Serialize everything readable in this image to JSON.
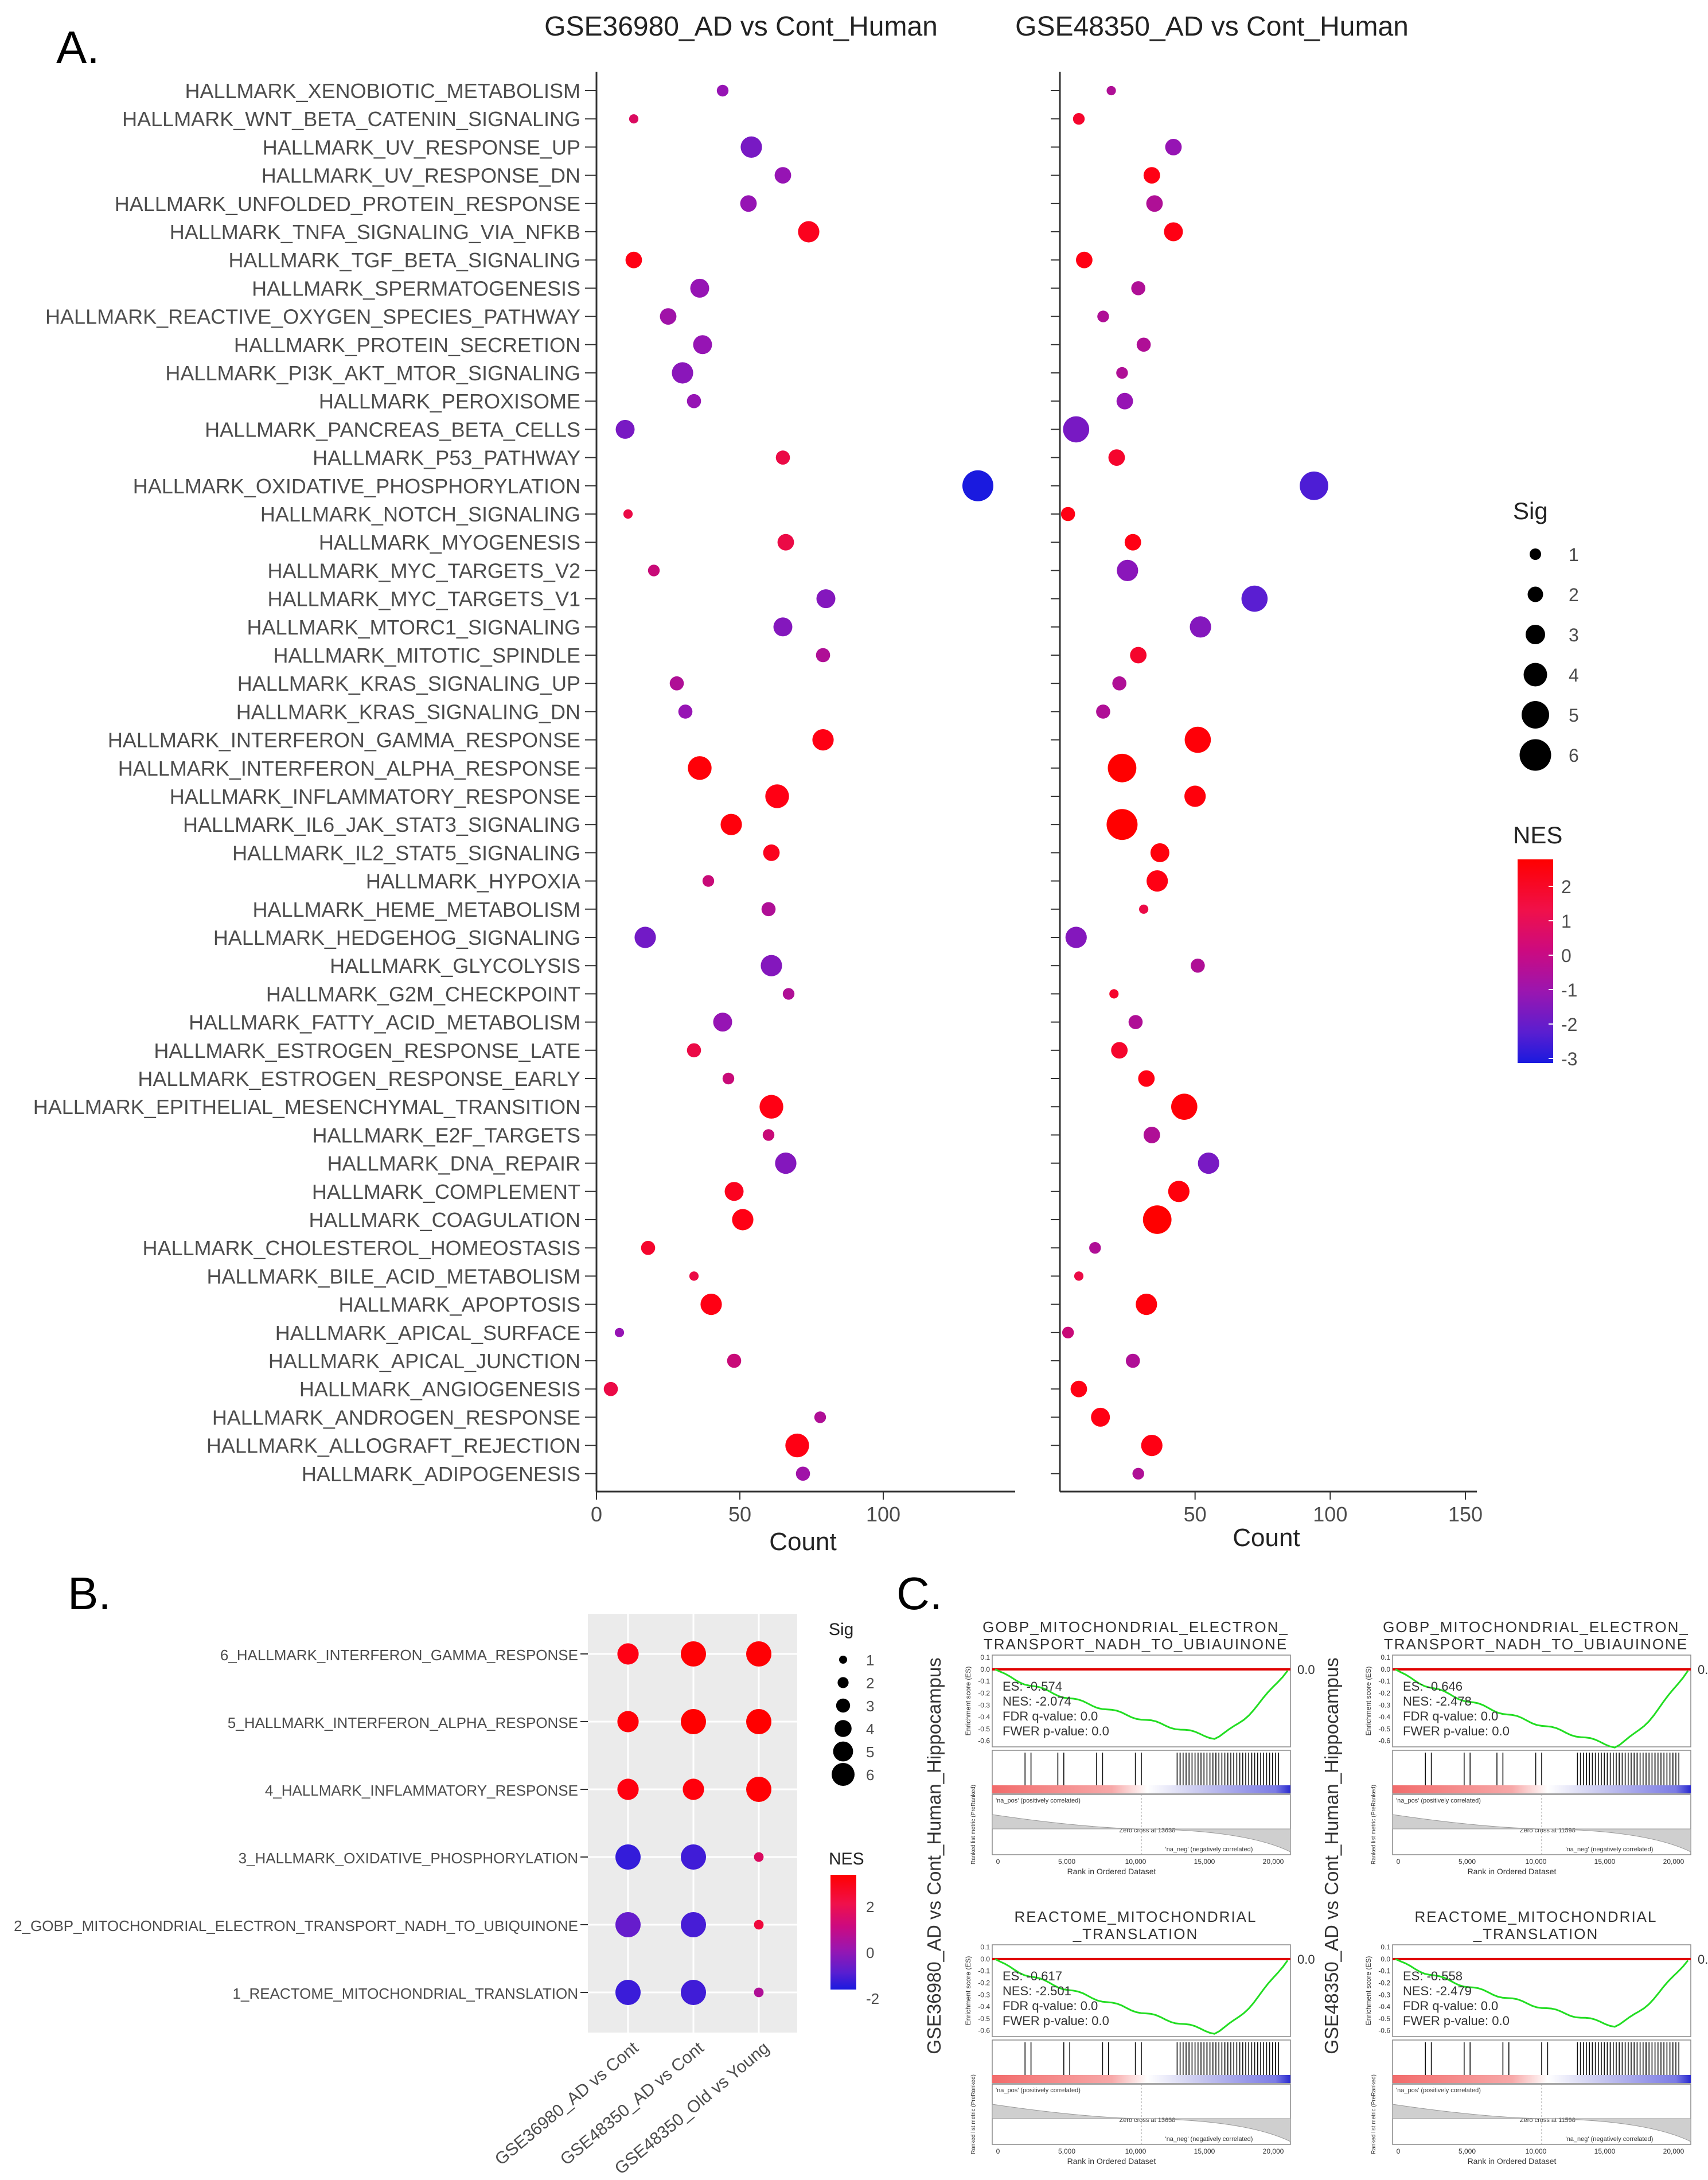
{
  "panel_labels": {
    "a": "A.",
    "b": "B.",
    "c": "C."
  },
  "chart_data": [
    {
      "type": "scatter",
      "panel": "A",
      "titles": [
        "GSE36980_AD vs Cont_Human",
        "GSE48350_AD vs Cont_Human"
      ],
      "xlabel": "Count",
      "xticks_left": [
        0,
        50,
        100
      ],
      "xticks_right": [
        50,
        100,
        150
      ],
      "xlim_left": [
        0,
        140
      ],
      "xlim_right": [
        0,
        150
      ],
      "categories": [
        "HALLMARK_XENOBIOTIC_METABOLISM",
        "HALLMARK_WNT_BETA_CATENIN_SIGNALING",
        "HALLMARK_UV_RESPONSE_UP",
        "HALLMARK_UV_RESPONSE_DN",
        "HALLMARK_UNFOLDED_PROTEIN_RESPONSE",
        "HALLMARK_TNFA_SIGNALING_VIA_NFKB",
        "HALLMARK_TGF_BETA_SIGNALING",
        "HALLMARK_SPERMATOGENESIS",
        "HALLMARK_REACTIVE_OXYGEN_SPECIES_PATHWAY",
        "HALLMARK_PROTEIN_SECRETION",
        "HALLMARK_PI3K_AKT_MTOR_SIGNALING",
        "HALLMARK_PEROXISOME",
        "HALLMARK_PANCREAS_BETA_CELLS",
        "HALLMARK_P53_PATHWAY",
        "HALLMARK_OXIDATIVE_PHOSPHORYLATION",
        "HALLMARK_NOTCH_SIGNALING",
        "HALLMARK_MYOGENESIS",
        "HALLMARK_MYC_TARGETS_V2",
        "HALLMARK_MYC_TARGETS_V1",
        "HALLMARK_MTORC1_SIGNALING",
        "HALLMARK_MITOTIC_SPINDLE",
        "HALLMARK_KRAS_SIGNALING_UP",
        "HALLMARK_KRAS_SIGNALING_DN",
        "HALLMARK_INTERFERON_GAMMA_RESPONSE",
        "HALLMARK_INTERFERON_ALPHA_RESPONSE",
        "HALLMARK_INFLAMMATORY_RESPONSE",
        "HALLMARK_IL6_JAK_STAT3_SIGNALING",
        "HALLMARK_IL2_STAT5_SIGNALING",
        "HALLMARK_HYPOXIA",
        "HALLMARK_HEME_METABOLISM",
        "HALLMARK_HEDGEHOG_SIGNALING",
        "HALLMARK_GLYCOLYSIS",
        "HALLMARK_G2M_CHECKPOINT",
        "HALLMARK_FATTY_ACID_METABOLISM",
        "HALLMARK_ESTROGEN_RESPONSE_LATE",
        "HALLMARK_ESTROGEN_RESPONSE_EARLY",
        "HALLMARK_EPITHELIAL_MESENCHYMAL_TRANSITION",
        "HALLMARK_E2F_TARGETS",
        "HALLMARK_DNA_REPAIR",
        "HALLMARK_COMPLEMENT",
        "HALLMARK_COAGULATION",
        "HALLMARK_CHOLESTEROL_HOMEOSTASIS",
        "HALLMARK_BILE_ACID_METABOLISM",
        "HALLMARK_APOPTOSIS",
        "HALLMARK_APICAL_SURFACE",
        "HALLMARK_APICAL_JUNCTION",
        "HALLMARK_ANGIOGENESIS",
        "HALLMARK_ANDROGEN_RESPONSE",
        "HALLMARK_ALLOGRAFT_REJECTION",
        "HALLMARK_ADIPOGENESIS"
      ],
      "series": [
        {
          "count": [
            44,
            13,
            54,
            65,
            53,
            74,
            13,
            36,
            25,
            37,
            30,
            34,
            10,
            65,
            133,
            11,
            66,
            20,
            80,
            65,
            79,
            28,
            31,
            79,
            36,
            63,
            47,
            61,
            39,
            60,
            17,
            61,
            67,
            44,
            34,
            46,
            61,
            60,
            66,
            48,
            51,
            18,
            34,
            40,
            8,
            48,
            5,
            78,
            70,
            72
          ],
          "nes": [
            -1,
            0.5,
            -1.5,
            -1,
            -1,
            1.8,
            2,
            -1,
            -0.8,
            -1,
            -1.2,
            -1,
            -1.5,
            1,
            -3,
            1,
            1,
            0,
            -1.3,
            -1.3,
            -0.5,
            -0.5,
            -1,
            2,
            2.3,
            2,
            2.2,
            1.8,
            0,
            -0.5,
            -1.6,
            -1.3,
            -0.5,
            -1,
            1,
            0,
            2,
            0,
            -1.3,
            1.8,
            2,
            1.5,
            1,
            2,
            -1,
            0,
            1,
            -0.5,
            2,
            -0.8
          ],
          "sig": [
            1,
            0.5,
            3,
            2,
            2,
            3,
            2,
            2.5,
            2,
            2.5,
            3,
            1.5,
            2.5,
            1.5,
            5,
            0.5,
            2,
            1,
            2.5,
            2.5,
            1.5,
            1.5,
            1.5,
            3,
            3.5,
            3.5,
            3,
            2,
            1,
            1.5,
            3,
            3,
            1,
            2.5,
            1.5,
            1,
            3.5,
            1,
            3,
            2.5,
            3,
            1.5,
            0.5,
            3,
            0.5,
            1.5,
            1.5,
            1,
            3.5,
            1.5
          ]
        },
        {
          "count": [
            19,
            7,
            42,
            34,
            35,
            42,
            9,
            29,
            16,
            31,
            23,
            24,
            6,
            21,
            94,
            3,
            27,
            25,
            72,
            52,
            29,
            22,
            16,
            51,
            23,
            50,
            23,
            37,
            36,
            31,
            6,
            51,
            20,
            28,
            22,
            32,
            46,
            34,
            55,
            44,
            36,
            13,
            7,
            32,
            3,
            27,
            7,
            15,
            34,
            29
          ],
          "nes": [
            -0.5,
            1.5,
            -1,
            2,
            -0.5,
            2,
            2,
            -0.5,
            -0.5,
            -0.5,
            -0.5,
            -1,
            -1.5,
            1.5,
            -2.2,
            2,
            2,
            -1.2,
            -2,
            -1.3,
            1.5,
            -0.5,
            -0.5,
            2.3,
            2.5,
            2.2,
            2.5,
            2.2,
            2,
            1,
            -1.3,
            -0.5,
            1.5,
            -0.5,
            1.5,
            2,
            2.3,
            -0.5,
            -1.5,
            2.2,
            2.5,
            -0.5,
            1,
            2.2,
            0,
            -0.5,
            2,
            2,
            2,
            -0.5
          ],
          "sig": [
            0.5,
            1,
            2,
            2,
            2,
            2.5,
            2,
            1.5,
            1,
            1.5,
            1,
            2,
            4,
            2,
            4.5,
            1.5,
            2,
            3,
            4,
            3,
            2,
            1.5,
            1.5,
            4,
            4.5,
            3,
            5,
            2.5,
            3,
            0.5,
            3,
            1.5,
            0.5,
            1.5,
            2,
            2,
            4,
            2,
            3,
            3,
            4.5,
            1,
            0.5,
            3,
            1,
            1.5,
            2,
            2.5,
            3,
            1
          ]
        }
      ],
      "size_legend": {
        "title": "Sig",
        "values": [
          "1",
          "2",
          "3",
          "4",
          "5",
          "6"
        ]
      },
      "color_legend": {
        "title": "NES",
        "ticks": [
          "2",
          "1",
          "0",
          "-1",
          "-2",
          "-3"
        ],
        "colors": [
          "#ff0000",
          "#1a1adf"
        ]
      }
    },
    {
      "type": "scatter",
      "panel": "B",
      "categories": [
        "6_HALLMARK_INTERFERON_GAMMA_RESPONSE",
        "5_HALLMARK_INTERFERON_ALPHA_RESPONSE",
        "4_HALLMARK_INFLAMMATORY_RESPONSE",
        "3_HALLMARK_OXIDATIVE_PHOSPHORYLATION",
        "2_GOBP_MITOCHONDRIAL_ELECTRON_TRANSPORT_NADH_TO_UBIQUINONE",
        "1_REACTOME_MITOCHONDRIAL_TRANSLATION"
      ],
      "x": [
        "GSE36980_AD vs Cont",
        "GSE48350_AD vs Cont",
        "GSE48350_Old vs Young"
      ],
      "series": [
        {
          "name": "GSE36980_AD vs Cont",
          "nes": [
            2,
            2.3,
            2.1,
            -2.6,
            -1.8,
            -2.5
          ],
          "sig": [
            4,
            4,
            4,
            5,
            5,
            5
          ]
        },
        {
          "name": "GSE48350_AD vs Cont",
          "nes": [
            2.4,
            2.5,
            2.2,
            -2.4,
            -2.3,
            -2.4
          ],
          "sig": [
            5,
            5,
            4,
            5,
            5,
            5
          ]
        },
        {
          "name": "GSE48350_Old vs Young",
          "nes": [
            2.4,
            2.5,
            2.4,
            0.5,
            1.2,
            -0.5
          ],
          "sig": [
            5,
            5,
            5,
            1,
            1,
            1
          ]
        }
      ],
      "size_legend": {
        "title": "Sig",
        "values": [
          "1",
          "2",
          "3",
          "4",
          "5",
          "6"
        ]
      },
      "color_legend": {
        "title": "NES",
        "ticks": [
          "2",
          "0",
          "-2"
        ]
      }
    },
    {
      "type": "line",
      "panel": "C",
      "row_labels": [
        "GSE36980_AD vs Cont_Human_Hippocampus",
        "GSE48350_AD vs Cont_Human_Hippocampus"
      ],
      "plots": [
        {
          "title1": "GOBP_MITOCHONDRIAL_ELECTRON_",
          "title2": "TRANSPORT_NADH_TO_UBIAUINONE",
          "es": "ES: -0.574",
          "nes": "NES: -2.074",
          "fdr": "FDR q-value: 0.0",
          "fwer": "FWER p-value: 0.0",
          "zero": "Zero cross at 13638",
          "min_es": -0.574
        },
        {
          "title1": "GOBP_MITOCHONDRIAL_ELECTRON_",
          "title2": "TRANSPORT_NADH_TO_UBIAUINONE",
          "es": "ES: -0.646",
          "nes": "NES: -2.478",
          "fdr": "FDR q-value: 0.0",
          "fwer": "FWER p-value: 0.0",
          "zero": "Zero cross at 11598",
          "min_es": -0.646
        },
        {
          "title1": "REACTOME_MITOCHONDRIAL",
          "title2": "_TRANSLATION",
          "es": "ES: -0.617",
          "nes": "NES: -2.501",
          "fdr": "FDR q-value: 0.0",
          "fwer": "FWER p-value: 0.0",
          "zero": "Zero cross at 13638",
          "min_es": -0.617
        },
        {
          "title1": "REACTOME_MITOCHONDRIAL",
          "title2": "_TRANSLATION",
          "es": "ES: -0.558",
          "nes": "NES: -2.479",
          "fdr": "FDR q-value: 0.0",
          "fwer": "FWER p-value: 0.0",
          "zero": "Zero cross at 11598",
          "min_es": -0.558
        }
      ],
      "es_axis_label": "Enrichment score (ES)",
      "metric_axis_label": "Ranked list metric (PreRanked)",
      "xlabel": "Rank in Ordered Dataset",
      "xticks": [
        "0",
        "5,000",
        "10,000",
        "15,000",
        "20,000"
      ],
      "es_ticks": [
        "0.1",
        "0.0",
        "-0.1",
        "-0.2",
        "-0.3",
        "-0.4",
        "-0.5",
        "-0.6"
      ],
      "zero_label": "0.0",
      "pos_label": "'na_pos' (positively correlated)",
      "neg_label": "'na_neg' (negatively correlated)"
    }
  ]
}
